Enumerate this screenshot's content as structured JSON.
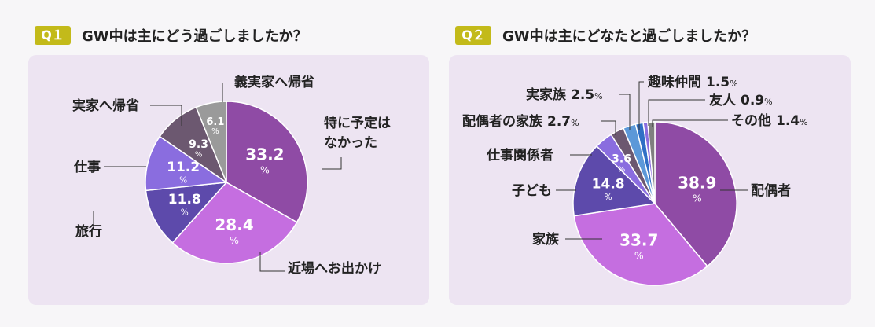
{
  "colors": {
    "badge": "#c3ba1a",
    "panel": "#ede4f2",
    "leader": "#333333",
    "slice_gray": "#9a9a9a",
    "slice_darkmauve": "#6c5870",
    "slice_light_purple": "#8a6ddf",
    "slice_indigo": "#5d4aab",
    "slice_pink_purple": "#c56ee0",
    "slice_purple": "#8f4ba5",
    "slice_blue": "#5c98d8",
    "slice_royal_blue": "#2f6fc5",
    "slice_mid_gray": "#7f7f7f"
  },
  "q1": {
    "badge": "Q１",
    "question": "GW中は主にどう過ごしましたか？",
    "percent_sign": "%"
  },
  "q2": {
    "badge": "Q２",
    "question": "GW中は主にどなたと過ごしましたか？",
    "percent_sign": "%"
  },
  "chart_data": [
    {
      "type": "pie",
      "title": "GW中は主にどう過ごしましたか？",
      "unit": "%",
      "slices": [
        {
          "label": "特に予定はなかった",
          "value": 33.2,
          "value_label": "33.2",
          "color": "#8f4ba5"
        },
        {
          "label": "近場へお出かけ",
          "value": 28.4,
          "value_label": "28.4",
          "color": "#c56ee0"
        },
        {
          "label": "旅行",
          "value": 11.8,
          "value_label": "11.8",
          "color": "#5d4aab"
        },
        {
          "label": "仕事",
          "value": 11.2,
          "value_label": "11.2",
          "color": "#8a6ddf"
        },
        {
          "label": "実家へ帰省",
          "value": 9.3,
          "value_label": "9.3",
          "color": "#6c5870"
        },
        {
          "label": "義実家へ帰省",
          "value": 6.1,
          "value_label": "6.1",
          "color": "#9a9a9a"
        }
      ]
    },
    {
      "type": "pie",
      "title": "GW中は主にどなたと過ごしましたか？",
      "unit": "%",
      "slices": [
        {
          "label": "配偶者",
          "value": 38.9,
          "value_label": "38.9",
          "color": "#8f4ba5"
        },
        {
          "label": "家族",
          "value": 33.7,
          "value_label": "33.7",
          "color": "#c56ee0"
        },
        {
          "label": "子ども",
          "value": 14.8,
          "value_label": "14.8",
          "color": "#5d4aab"
        },
        {
          "label": "仕事関係者",
          "value": 3.6,
          "value_label": "3.6",
          "color": "#8a6ddf"
        },
        {
          "label": "配偶者の家族",
          "value": 2.7,
          "value_label": "2.7",
          "color": "#6c5870"
        },
        {
          "label": "実家族",
          "value": 2.5,
          "value_label": "2.5",
          "color": "#5c98d8"
        },
        {
          "label": "趣味仲間",
          "value": 1.5,
          "value_label": "1.5",
          "color": "#2f6fc5"
        },
        {
          "label": "友人",
          "value": 0.9,
          "value_label": "0.9",
          "color": "#8a6ddf"
        },
        {
          "label": "その他",
          "value": 1.4,
          "value_label": "1.4",
          "color": "#7f7f7f"
        }
      ]
    }
  ]
}
